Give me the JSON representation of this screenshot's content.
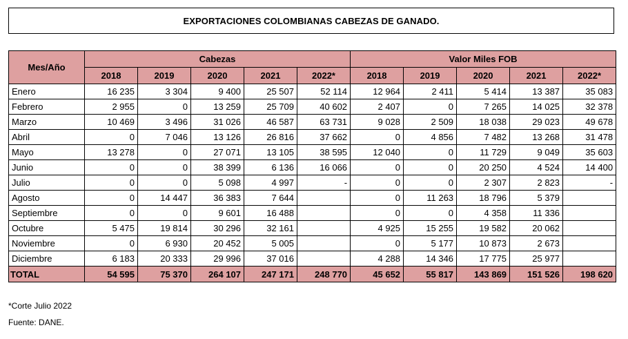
{
  "title": "EXPORTACIONES COLOMBIANAS CABEZAS DE GANADO.",
  "header": {
    "row_label": "Mes/Año",
    "group1": "Cabezas",
    "group2": "Valor Miles FOB",
    "years": [
      "2018",
      "2019",
      "2020",
      "2021",
      "2022*"
    ]
  },
  "rows": [
    {
      "month": "Enero",
      "cabezas": [
        "16 235",
        "3 304",
        "9 400",
        "25 507",
        "52 114"
      ],
      "valor": [
        "12 964",
        "2 411",
        "5 414",
        "13 387",
        "35 083"
      ]
    },
    {
      "month": "Febrero",
      "cabezas": [
        "2 955",
        "0",
        "13 259",
        "25 709",
        "40 602"
      ],
      "valor": [
        "2 407",
        "0",
        "7 265",
        "14 025",
        "32 378"
      ]
    },
    {
      "month": "Marzo",
      "cabezas": [
        "10 469",
        "3 496",
        "31 026",
        "46 587",
        "63 731"
      ],
      "valor": [
        "9 028",
        "2 509",
        "18 038",
        "29 023",
        "49 678"
      ]
    },
    {
      "month": "Abril",
      "cabezas": [
        "0",
        "7 046",
        "13 126",
        "26 816",
        "37 662"
      ],
      "valor": [
        "0",
        "4 856",
        "7 482",
        "13 268",
        "31 478"
      ]
    },
    {
      "month": "Mayo",
      "cabezas": [
        "13 278",
        "0",
        "27 071",
        "13 105",
        "38 595"
      ],
      "valor": [
        "12 040",
        "0",
        "11 729",
        "9 049",
        "35 603"
      ]
    },
    {
      "month": "Junio",
      "cabezas": [
        "0",
        "0",
        "38 399",
        "6 136",
        "16 066"
      ],
      "valor": [
        "0",
        "0",
        "20 250",
        "4 524",
        "14 400"
      ]
    },
    {
      "month": "Julio",
      "cabezas": [
        "0",
        "0",
        "5 098",
        "4 997",
        "-"
      ],
      "valor": [
        "0",
        "0",
        "2 307",
        "2 823",
        "-"
      ]
    },
    {
      "month": "Agosto",
      "cabezas": [
        "0",
        "14 447",
        "36 383",
        "7 644",
        ""
      ],
      "valor": [
        "0",
        "11 263",
        "18 796",
        "5 379",
        ""
      ]
    },
    {
      "month": "Septiembre",
      "cabezas": [
        "0",
        "0",
        "9 601",
        "16 488",
        ""
      ],
      "valor": [
        "0",
        "0",
        "4 358",
        "11 336",
        ""
      ]
    },
    {
      "month": "Octubre",
      "cabezas": [
        "5 475",
        "19 814",
        "30 296",
        "32 161",
        ""
      ],
      "valor": [
        "4 925",
        "15 255",
        "19 582",
        "20 062",
        ""
      ]
    },
    {
      "month": "Noviembre",
      "cabezas": [
        "0",
        "6 930",
        "20 452",
        "5 005",
        ""
      ],
      "valor": [
        "0",
        "5 177",
        "10 873",
        "2 673",
        ""
      ]
    },
    {
      "month": "Diciembre",
      "cabezas": [
        "6 183",
        "20 333",
        "29 996",
        "37 016",
        ""
      ],
      "valor": [
        "4 288",
        "14 346",
        "17 775",
        "25 977",
        ""
      ]
    }
  ],
  "total": {
    "label": "TOTAL",
    "cabezas": [
      "54 595",
      "75 370",
      "264 107",
      "247 171",
      "248 770"
    ],
    "valor": [
      "45 652",
      "55 817",
      "143 869",
      "151 526",
      "198 620"
    ]
  },
  "footnotes": {
    "corte": "*Corte Julio 2022",
    "fuente": "Fuente: DANE."
  }
}
